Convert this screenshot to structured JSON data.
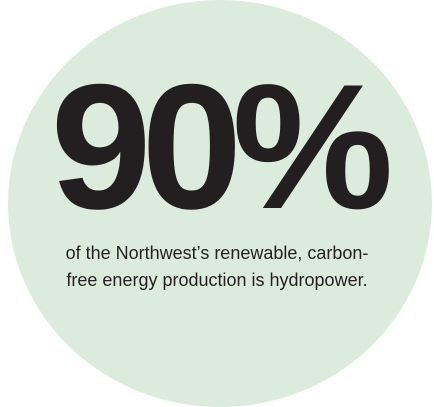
{
  "stat": {
    "value": "90%",
    "caption_line1": "of the Northwest’s renewable, carbon-",
    "caption_line2": "free energy production is hydropower."
  },
  "colors": {
    "circle": "#dcecdc",
    "text": "#231f20",
    "background": "#ffffff"
  }
}
